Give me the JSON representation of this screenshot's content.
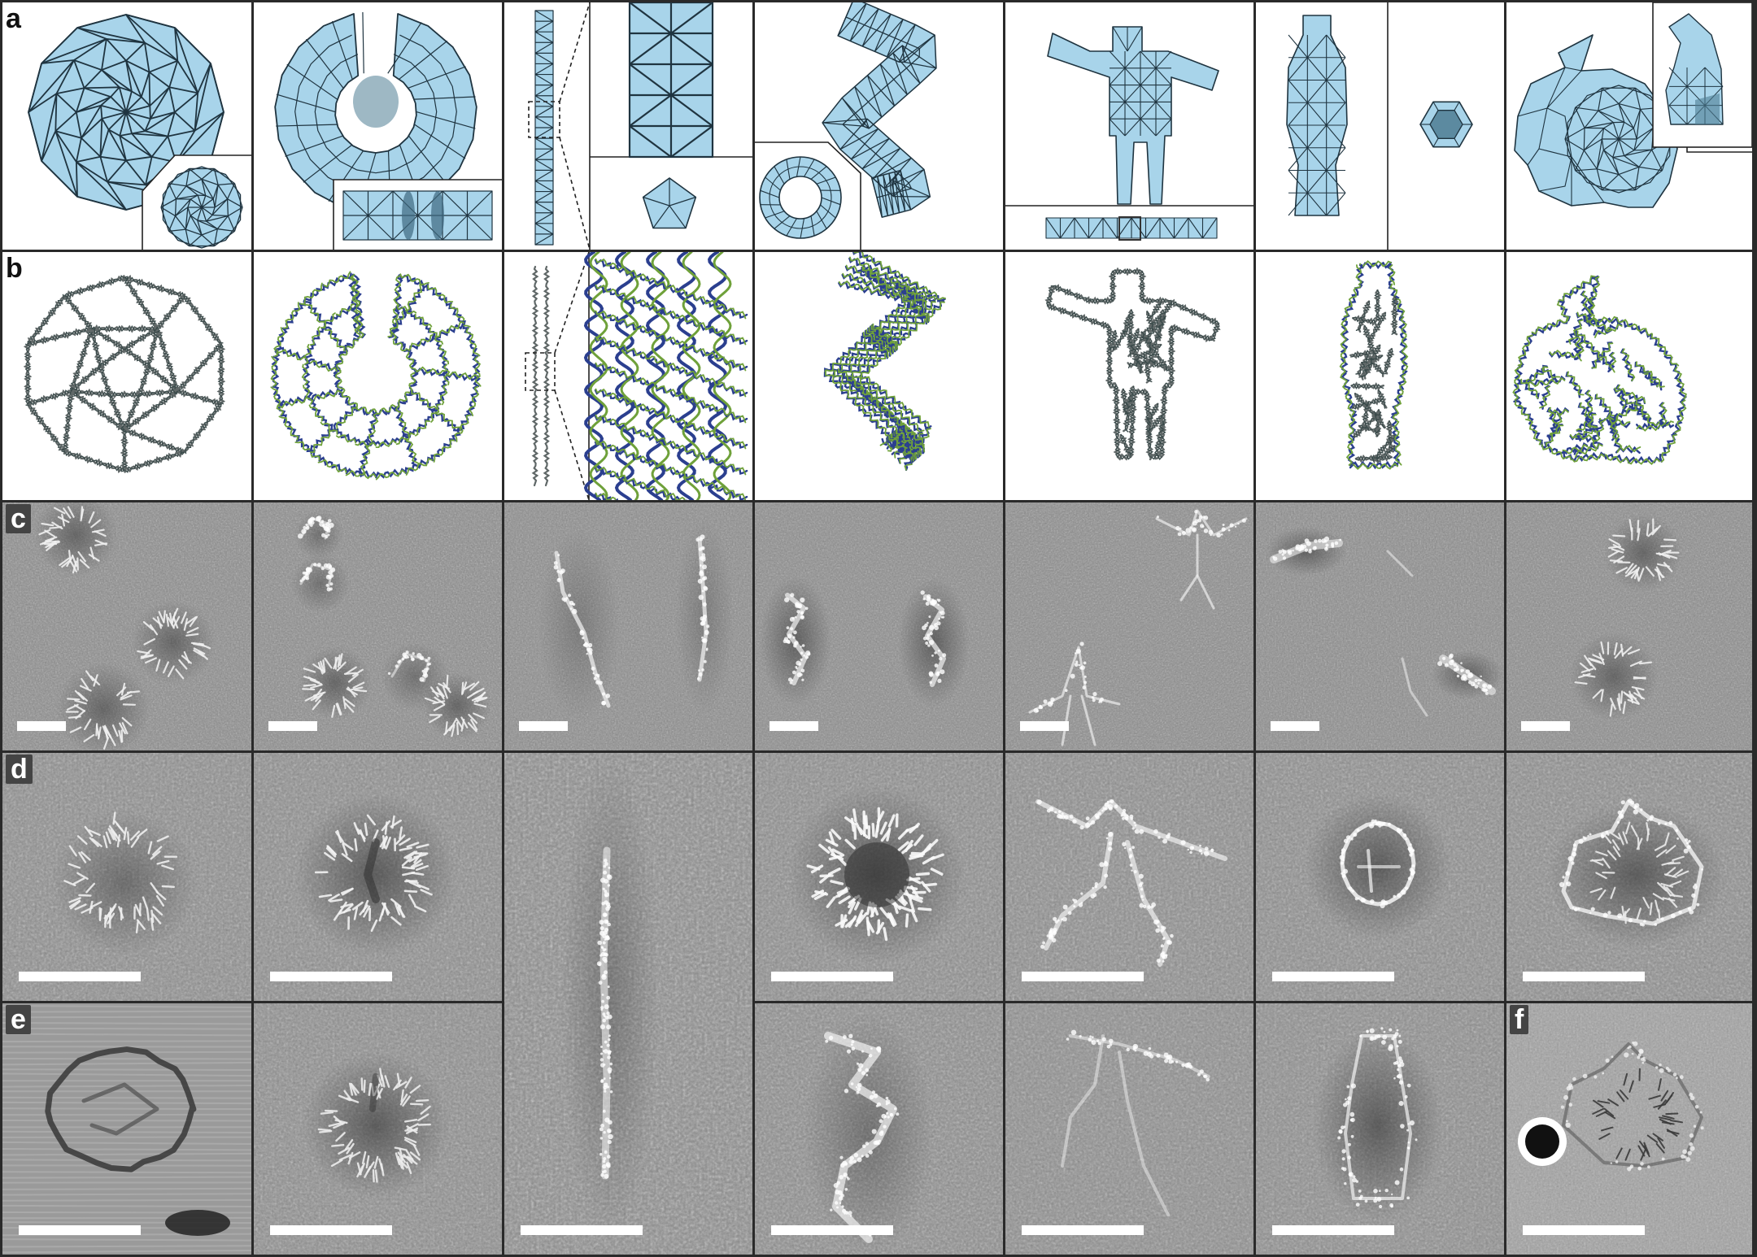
{
  "figure": {
    "panel_labels": {
      "a": "a",
      "b": "b",
      "c": "c",
      "d": "d",
      "e": "e",
      "f": "f"
    },
    "colors": {
      "mesh_fill": "#a8d4ea",
      "mesh_edge": "#1f3440",
      "dna_blue": "#2b3f8f",
      "dna_green": "#6fa13a",
      "dna_gray": "#606868",
      "frame": "#2a2a2a"
    },
    "rows": [
      {
        "id": "a",
        "kind": "mesh-renderings",
        "columns": 7
      },
      {
        "id": "b",
        "kind": "dna-models",
        "columns": 7
      },
      {
        "id": "c",
        "kind": "tem-fields",
        "columns": 7
      },
      {
        "id": "d",
        "kind": "tem-closeups",
        "columns": 7
      },
      {
        "id": "e",
        "kind": "cryo-closeups",
        "columns": 7
      }
    ],
    "shapes": [
      "icosahedron",
      "ring",
      "rod",
      "helix",
      "stickman",
      "bottle",
      "bunny"
    ]
  }
}
